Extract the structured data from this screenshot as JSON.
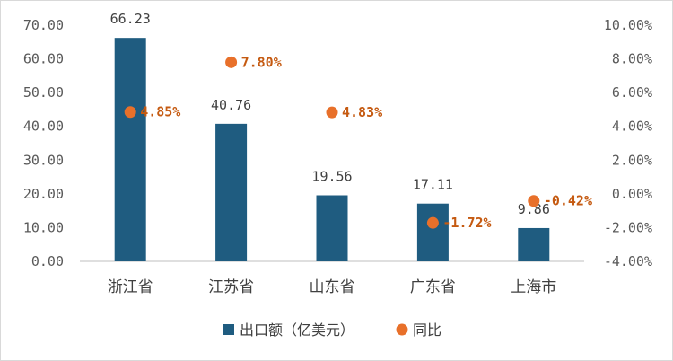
{
  "chart_data": {
    "type": "bar",
    "categories": [
      "浙江省",
      "江苏省",
      "山东省",
      "广东省",
      "上海市"
    ],
    "series": [
      {
        "name": "出口额（亿美元）",
        "type": "bar",
        "axis": "left",
        "values": [
          66.23,
          40.76,
          19.56,
          17.11,
          9.86
        ],
        "labels": [
          "66.23",
          "40.76",
          "19.56",
          "17.11",
          "9.86"
        ],
        "color": "#1f5c80"
      },
      {
        "name": "同比",
        "type": "scatter",
        "axis": "right",
        "values": [
          4.85,
          7.8,
          4.83,
          -1.72,
          -0.42
        ],
        "labels": [
          "4.85%",
          "7.80%",
          "4.83%",
          "-1.72%",
          "-0.42%"
        ],
        "color": "#e8702a"
      }
    ],
    "y_left": {
      "ylim": [
        0,
        70
      ],
      "ticks": [
        0,
        10,
        20,
        30,
        40,
        50,
        60,
        70
      ],
      "tick_labels": [
        "0.00",
        "10.00",
        "20.00",
        "30.00",
        "40.00",
        "50.00",
        "60.00",
        "70.00"
      ]
    },
    "y_right": {
      "ylim": [
        -4,
        10
      ],
      "ticks": [
        -4,
        -2,
        0,
        2,
        4,
        6,
        8,
        10
      ],
      "tick_labels": [
        "-4.00%",
        "-2.00%",
        "0.00%",
        "2.00%",
        "4.00%",
        "6.00%",
        "8.00%",
        "10.00%"
      ]
    },
    "grid": false,
    "legend": "bottom",
    "label_color": "#c55a11",
    "axis_color": "#bfbfbf"
  }
}
